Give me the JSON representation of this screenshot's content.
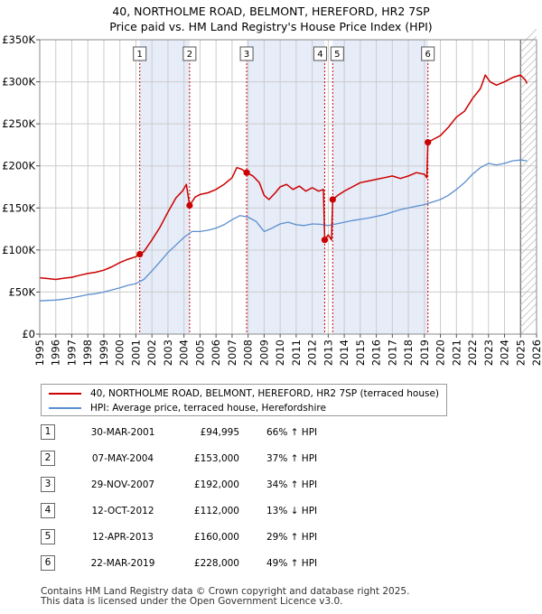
{
  "title": {
    "line1": "40, NORTHOLME ROAD, BELMONT, HEREFORD, HR2 7SP",
    "line2": "Price paid vs. HM Land Registry's House Price Index (HPI)"
  },
  "colors": {
    "property": "#cc0000",
    "hpi": "#5b8fcf",
    "shade": "#e6ecf8",
    "grid": "#cccccc",
    "marker_line": "#cc0000"
  },
  "chart_data": {
    "type": "line",
    "title": "Price paid vs. HM Land Registry's House Price Index (HPI)",
    "xlabel": "",
    "ylabel": "",
    "xlim": [
      1995,
      2026
    ],
    "ylim": [
      0,
      350000
    ],
    "x_ticks": [
      "1995",
      "1996",
      "1997",
      "1998",
      "1999",
      "2000",
      "2001",
      "2002",
      "2003",
      "2004",
      "2005",
      "2006",
      "2007",
      "2008",
      "2009",
      "2010",
      "2011",
      "2012",
      "2013",
      "2014",
      "2015",
      "2016",
      "2017",
      "2018",
      "2019",
      "2020",
      "2021",
      "2022",
      "2023",
      "2024",
      "2025",
      "2026"
    ],
    "y_ticks": [
      {
        "value": 0,
        "label": "£0"
      },
      {
        "value": 50000,
        "label": "£50K"
      },
      {
        "value": 100000,
        "label": "£100K"
      },
      {
        "value": 150000,
        "label": "£150K"
      },
      {
        "value": 200000,
        "label": "£200K"
      },
      {
        "value": 250000,
        "label": "£250K"
      },
      {
        "value": 300000,
        "label": "£300K"
      },
      {
        "value": 350000,
        "label": "£350K"
      }
    ],
    "grid": true,
    "shaded_periods": [
      [
        2001.24,
        2004.35
      ],
      [
        2007.91,
        2012.78
      ],
      [
        2013.28,
        2019.22
      ]
    ],
    "forecast_start": 2025.0,
    "series": [
      {
        "name": "40, NORTHOLME ROAD, BELMONT, HEREFORD, HR2 7SP (terraced house)",
        "color": "#cc0000",
        "points": [
          [
            1995,
            67000
          ],
          [
            1995.5,
            66000
          ],
          [
            1996,
            65000
          ],
          [
            1996.5,
            66500
          ],
          [
            1997,
            67500
          ],
          [
            1997.5,
            70000
          ],
          [
            1998,
            72000
          ],
          [
            1998.5,
            73500
          ],
          [
            1999,
            76000
          ],
          [
            1999.5,
            80000
          ],
          [
            2000,
            85000
          ],
          [
            2000.5,
            89000
          ],
          [
            2001,
            92000
          ],
          [
            2001.24,
            94995
          ],
          [
            2001.5,
            98000
          ],
          [
            2002,
            112000
          ],
          [
            2002.5,
            127000
          ],
          [
            2003,
            145000
          ],
          [
            2003.5,
            162000
          ],
          [
            2003.9,
            170000
          ],
          [
            2004.15,
            178000
          ],
          [
            2004.35,
            153000
          ],
          [
            2004.7,
            163000
          ],
          [
            2005,
            166000
          ],
          [
            2005.5,
            168000
          ],
          [
            2006,
            172000
          ],
          [
            2006.5,
            178000
          ],
          [
            2007,
            186000
          ],
          [
            2007.3,
            198000
          ],
          [
            2007.6,
            196000
          ],
          [
            2007.91,
            192000
          ],
          [
            2008.3,
            188000
          ],
          [
            2008.7,
            180000
          ],
          [
            2009,
            165000
          ],
          [
            2009.3,
            160000
          ],
          [
            2009.7,
            168000
          ],
          [
            2010,
            175000
          ],
          [
            2010.4,
            178000
          ],
          [
            2010.8,
            172000
          ],
          [
            2011.2,
            176000
          ],
          [
            2011.6,
            170000
          ],
          [
            2012,
            174000
          ],
          [
            2012.4,
            170000
          ],
          [
            2012.7,
            172000
          ],
          [
            2012.78,
            112000
          ],
          [
            2013.0,
            118000
          ],
          [
            2013.2,
            112000
          ],
          [
            2013.28,
            160000
          ],
          [
            2013.6,
            165000
          ],
          [
            2014,
            170000
          ],
          [
            2014.5,
            175000
          ],
          [
            2015,
            180000
          ],
          [
            2015.5,
            182000
          ],
          [
            2016,
            184000
          ],
          [
            2016.5,
            186000
          ],
          [
            2017,
            188000
          ],
          [
            2017.5,
            185000
          ],
          [
            2018,
            188000
          ],
          [
            2018.5,
            192000
          ],
          [
            2019,
            190000
          ],
          [
            2019.15,
            186000
          ],
          [
            2019.22,
            228000
          ],
          [
            2019.6,
            232000
          ],
          [
            2020,
            236000
          ],
          [
            2020.5,
            246000
          ],
          [
            2021,
            258000
          ],
          [
            2021.5,
            265000
          ],
          [
            2022,
            280000
          ],
          [
            2022.5,
            292000
          ],
          [
            2022.8,
            308000
          ],
          [
            2023.1,
            300000
          ],
          [
            2023.5,
            296000
          ],
          [
            2024,
            300000
          ],
          [
            2024.5,
            305000
          ],
          [
            2025,
            308000
          ],
          [
            2025.3,
            302000
          ],
          [
            2025.4,
            298000
          ]
        ]
      },
      {
        "name": "HPI: Average price, terraced house, Herefordshire",
        "color": "#5b8fcf",
        "points": [
          [
            1995,
            39500
          ],
          [
            1995.5,
            40000
          ],
          [
            1996,
            40500
          ],
          [
            1996.5,
            41500
          ],
          [
            1997,
            43000
          ],
          [
            1997.5,
            45000
          ],
          [
            1998,
            47000
          ],
          [
            1998.5,
            48000
          ],
          [
            1999,
            50000
          ],
          [
            1999.5,
            52500
          ],
          [
            2000,
            55000
          ],
          [
            2000.5,
            58000
          ],
          [
            2001,
            60000
          ],
          [
            2001.5,
            65000
          ],
          [
            2002,
            75000
          ],
          [
            2002.5,
            86000
          ],
          [
            2003,
            97000
          ],
          [
            2003.5,
            106000
          ],
          [
            2004,
            115000
          ],
          [
            2004.5,
            122000
          ],
          [
            2005,
            122000
          ],
          [
            2005.5,
            123500
          ],
          [
            2006,
            126000
          ],
          [
            2006.5,
            130000
          ],
          [
            2007,
            136000
          ],
          [
            2007.5,
            141000
          ],
          [
            2008,
            139000
          ],
          [
            2008.5,
            134000
          ],
          [
            2009,
            122000
          ],
          [
            2009.5,
            126000
          ],
          [
            2010,
            131000
          ],
          [
            2010.5,
            133000
          ],
          [
            2011,
            130000
          ],
          [
            2011.5,
            129000
          ],
          [
            2012,
            131000
          ],
          [
            2012.5,
            130500
          ],
          [
            2013,
            129000
          ],
          [
            2013.5,
            131000
          ],
          [
            2014,
            133000
          ],
          [
            2014.5,
            135000
          ],
          [
            2015,
            136500
          ],
          [
            2015.5,
            138000
          ],
          [
            2016,
            140000
          ],
          [
            2016.5,
            142000
          ],
          [
            2017,
            145000
          ],
          [
            2017.5,
            148000
          ],
          [
            2018,
            150000
          ],
          [
            2018.5,
            152000
          ],
          [
            2019,
            154000
          ],
          [
            2019.5,
            157000
          ],
          [
            2020,
            160000
          ],
          [
            2020.5,
            165000
          ],
          [
            2021,
            172000
          ],
          [
            2021.5,
            180000
          ],
          [
            2022,
            190000
          ],
          [
            2022.5,
            198000
          ],
          [
            2023,
            203000
          ],
          [
            2023.5,
            201000
          ],
          [
            2024,
            203000
          ],
          [
            2024.5,
            206000
          ],
          [
            2025,
            207000
          ],
          [
            2025.4,
            206000
          ]
        ]
      }
    ],
    "sales": [
      {
        "num": "1",
        "x": 2001.24,
        "value": 94995
      },
      {
        "num": "2",
        "x": 2004.35,
        "value": 153000
      },
      {
        "num": "3",
        "x": 2007.91,
        "value": 192000
      },
      {
        "num": "4",
        "x": 2012.78,
        "value": 112000
      },
      {
        "num": "5",
        "x": 2013.28,
        "value": 160000
      },
      {
        "num": "6",
        "x": 2019.22,
        "value": 228000
      }
    ]
  },
  "legend": {
    "property_label": "40, NORTHOLME ROAD, BELMONT, HEREFORD, HR2 7SP (terraced house)",
    "hpi_label": "HPI: Average price, terraced house, Herefordshire"
  },
  "sales_table": [
    {
      "num": "1",
      "date": "30-MAR-2001",
      "price": "£94,995",
      "hpi": "66% ↑ HPI"
    },
    {
      "num": "2",
      "date": "07-MAY-2004",
      "price": "£153,000",
      "hpi": "37% ↑ HPI"
    },
    {
      "num": "3",
      "date": "29-NOV-2007",
      "price": "£192,000",
      "hpi": "34% ↑ HPI"
    },
    {
      "num": "4",
      "date": "12-OCT-2012",
      "price": "£112,000",
      "hpi": "13% ↓ HPI"
    },
    {
      "num": "5",
      "date": "12-APR-2013",
      "price": "£160,000",
      "hpi": "29% ↑ HPI"
    },
    {
      "num": "6",
      "date": "22-MAR-2019",
      "price": "£228,000",
      "hpi": "49% ↑ HPI"
    }
  ],
  "footer": {
    "line1": "Contains HM Land Registry data © Crown copyright and database right 2025.",
    "line2": "This data is licensed under the Open Government Licence v3.0."
  }
}
